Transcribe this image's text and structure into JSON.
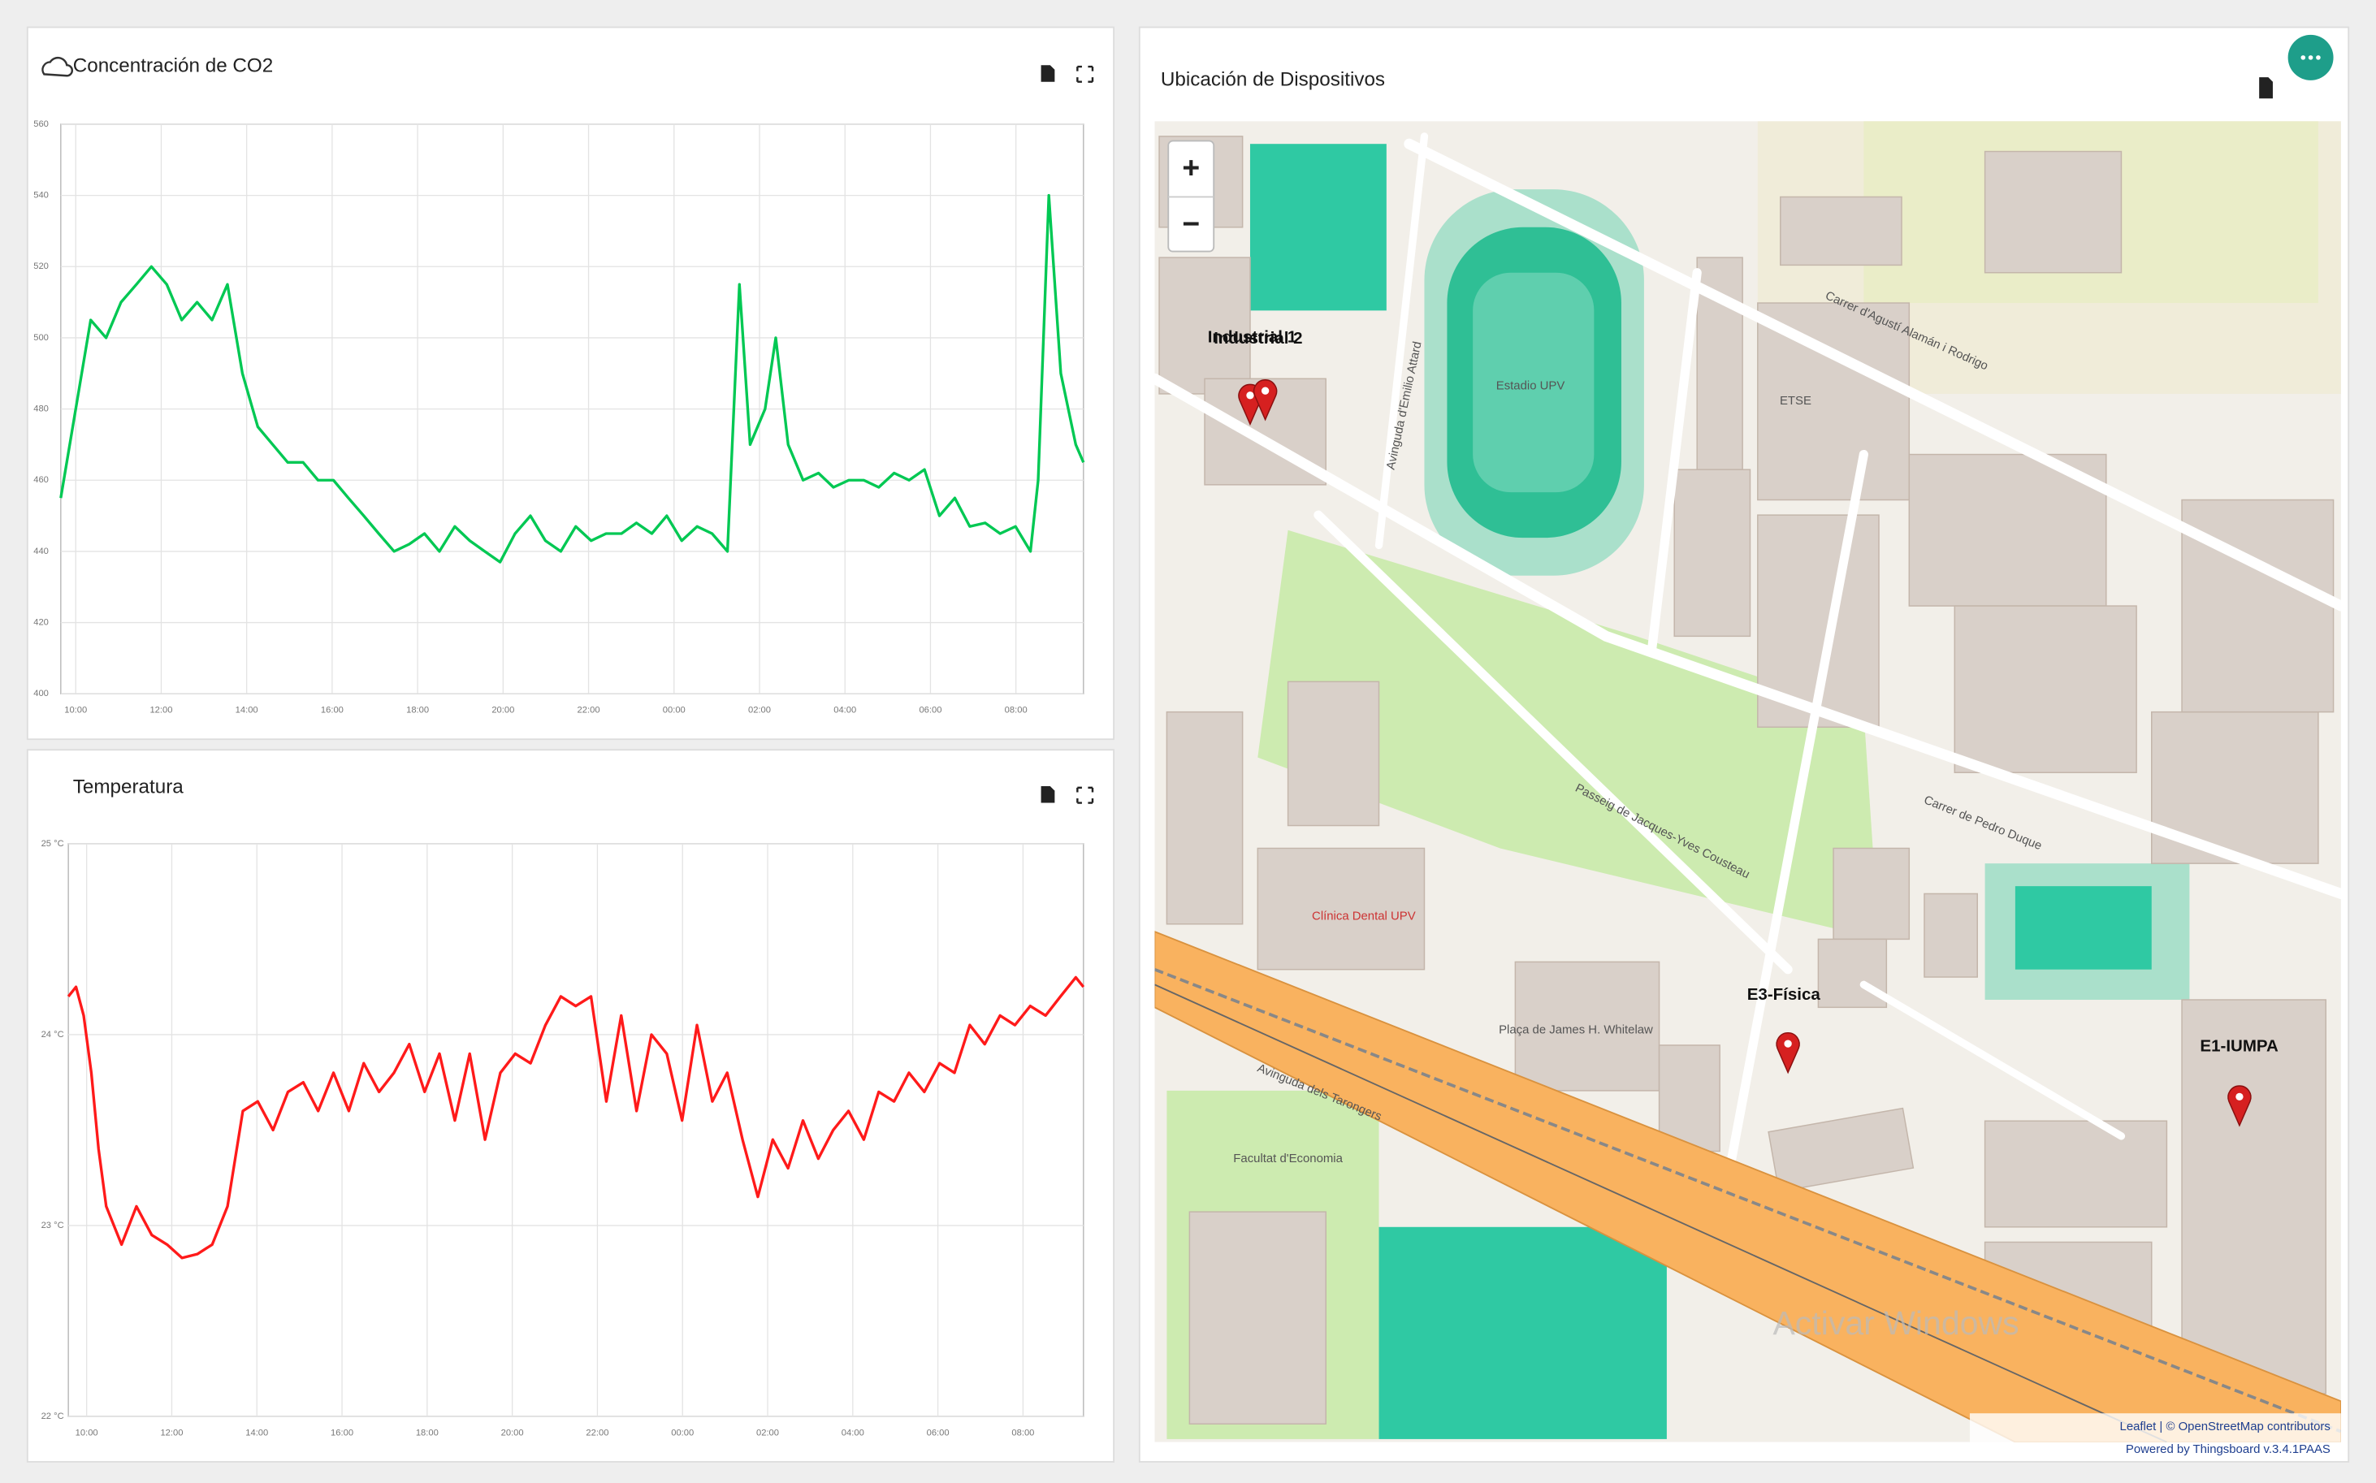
{
  "chart_data": [
    {
      "type": "line",
      "title": "Concentración de CO2",
      "color": "#00c853",
      "grid": true,
      "xlim": [
        9.65,
        33.58
      ],
      "ylim": [
        400,
        560
      ],
      "xticks": [
        {
          "value": 10,
          "label": "10:00"
        },
        {
          "value": 12,
          "label": "12:00"
        },
        {
          "value": 14,
          "label": "14:00"
        },
        {
          "value": 16,
          "label": "16:00"
        },
        {
          "value": 18,
          "label": "18:00"
        },
        {
          "value": 20,
          "label": "20:00"
        },
        {
          "value": 22,
          "label": "22:00"
        },
        {
          "value": 24,
          "label": "00:00"
        },
        {
          "value": 26,
          "label": "02:00"
        },
        {
          "value": 28,
          "label": "04:00"
        },
        {
          "value": 30,
          "label": "06:00"
        },
        {
          "value": 32,
          "label": "08:00"
        }
      ],
      "yticks": [
        400,
        420,
        440,
        460,
        480,
        500,
        520,
        540,
        560
      ],
      "x": [
        9.65,
        10.0,
        10.35,
        10.71,
        11.06,
        11.42,
        11.77,
        12.13,
        12.48,
        12.84,
        13.19,
        13.55,
        13.9,
        14.26,
        14.61,
        14.96,
        15.32,
        15.67,
        16.03,
        16.38,
        16.74,
        17.09,
        17.45,
        17.8,
        18.16,
        18.51,
        18.87,
        19.22,
        19.57,
        19.93,
        20.28,
        20.64,
        20.99,
        21.35,
        21.7,
        22.06,
        22.41,
        22.77,
        23.12,
        23.48,
        23.83,
        24.18,
        24.54,
        24.89,
        25.25,
        25.53,
        25.78,
        26.13,
        26.38,
        26.67,
        27.02,
        27.38,
        27.73,
        28.09,
        28.44,
        28.79,
        29.15,
        29.5,
        29.86,
        30.21,
        30.57,
        30.92,
        31.28,
        31.63,
        31.99,
        32.34,
        32.52,
        32.77,
        33.05,
        33.4,
        33.58
      ],
      "values": [
        455,
        480,
        505,
        500,
        510,
        515,
        520,
        515,
        505,
        510,
        505,
        515,
        490,
        475,
        470,
        465,
        465,
        460,
        460,
        455,
        450,
        445,
        440,
        442,
        445,
        440,
        447,
        443,
        440,
        437,
        445,
        450,
        443,
        440,
        447,
        443,
        445,
        445,
        448,
        445,
        450,
        443,
        447,
        445,
        440,
        515,
        470,
        480,
        500,
        470,
        460,
        462,
        458,
        460,
        460,
        458,
        462,
        460,
        463,
        450,
        455,
        447,
        448,
        445,
        447,
        440,
        460,
        540,
        490,
        470,
        465
      ]
    },
    {
      "type": "line",
      "title": "Temperatura",
      "color": "#ff1a1a",
      "grid": true,
      "xlim": [
        9.57,
        33.42
      ],
      "ylim": [
        22,
        25
      ],
      "xticks": [
        {
          "value": 10,
          "label": "10:00"
        },
        {
          "value": 12,
          "label": "12:00"
        },
        {
          "value": 14,
          "label": "14:00"
        },
        {
          "value": 16,
          "label": "16:00"
        },
        {
          "value": 18,
          "label": "18:00"
        },
        {
          "value": 20,
          "label": "20:00"
        },
        {
          "value": 22,
          "label": "22:00"
        },
        {
          "value": 24,
          "label": "00:00"
        },
        {
          "value": 26,
          "label": "02:00"
        },
        {
          "value": 28,
          "label": "04:00"
        },
        {
          "value": 30,
          "label": "06:00"
        },
        {
          "value": 32,
          "label": "08:00"
        }
      ],
      "yticks": [
        {
          "value": 22,
          "label": "22 °C"
        },
        {
          "value": 23,
          "label": "23 °C"
        },
        {
          "value": 24,
          "label": "24 °C"
        },
        {
          "value": 25,
          "label": "25 °C"
        }
      ],
      "x": [
        9.57,
        9.75,
        9.93,
        10.11,
        10.28,
        10.46,
        10.82,
        11.17,
        11.53,
        11.89,
        12.24,
        12.6,
        12.95,
        13.31,
        13.67,
        14.02,
        14.38,
        14.73,
        15.09,
        15.44,
        15.8,
        16.16,
        16.51,
        16.87,
        17.22,
        17.58,
        17.94,
        18.29,
        18.65,
        19.0,
        19.36,
        19.72,
        20.07,
        20.43,
        20.78,
        21.14,
        21.49,
        21.85,
        22.21,
        22.56,
        22.92,
        23.27,
        23.63,
        23.99,
        24.34,
        24.7,
        25.05,
        25.41,
        25.77,
        26.12,
        26.48,
        26.83,
        27.19,
        27.54,
        27.9,
        28.26,
        28.61,
        28.97,
        29.32,
        29.68,
        30.04,
        30.39,
        30.75,
        31.1,
        31.46,
        31.81,
        32.17,
        32.53,
        32.88,
        33.24,
        33.42
      ],
      "values": [
        24.2,
        24.25,
        24.1,
        23.8,
        23.4,
        23.1,
        22.9,
        23.1,
        22.95,
        22.9,
        22.83,
        22.85,
        22.9,
        23.1,
        23.6,
        23.65,
        23.5,
        23.7,
        23.75,
        23.6,
        23.8,
        23.6,
        23.85,
        23.7,
        23.8,
        23.95,
        23.7,
        23.9,
        23.55,
        23.9,
        23.45,
        23.8,
        23.9,
        23.85,
        24.05,
        24.2,
        24.15,
        24.2,
        23.65,
        24.1,
        23.6,
        24.0,
        23.9,
        23.55,
        24.05,
        23.65,
        23.8,
        23.45,
        23.15,
        23.45,
        23.3,
        23.55,
        23.35,
        23.5,
        23.6,
        23.45,
        23.7,
        23.65,
        23.8,
        23.7,
        23.85,
        23.8,
        24.05,
        23.95,
        24.1,
        24.05,
        24.15,
        24.1,
        24.2,
        24.3,
        24.25
      ]
    }
  ],
  "map": {
    "title": "Ubicación de Dispositivos",
    "zoom_in": "+",
    "zoom_out": "−",
    "markers": [
      {
        "label": "Industrial 1"
      },
      {
        "label": "Industrial 2"
      },
      {
        "label": "E3-Física"
      },
      {
        "label": "E1-IUMPA"
      }
    ],
    "labels": [
      "Estadio UPV",
      "Carrer d'Agustí Alamán i Rodrigo",
      "Avinguda dels Tarongers",
      "Passeig de Jacques-Yves Cousteau",
      "Carrer de Pedro Duque",
      "Avinguda d'Emilio Attard",
      "ETSE",
      "Facultat d'Economia",
      "Clínica Dental UPV",
      "Plaça de James H. Whitelaw",
      "Activar Windows"
    ],
    "attribution": "Leaflet | © OpenStreetMap contributors",
    "powered_by": "Powered by Thingsboard v.3.4.1PAAS"
  }
}
